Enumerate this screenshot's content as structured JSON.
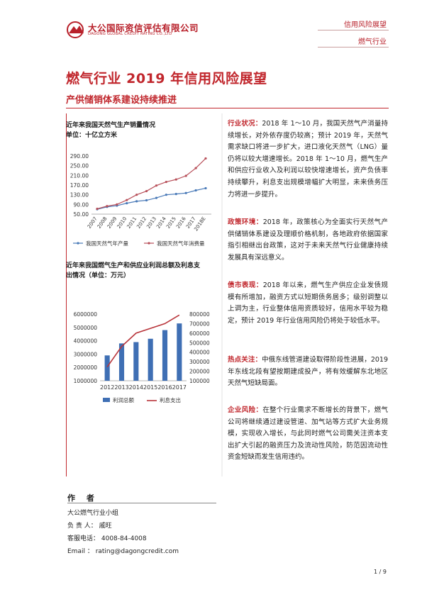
{
  "header": {
    "logo_cn": "大公国际资信评估有限公司",
    "logo_en": "DAGONG GLOBAL CREDIT RATING CO.,LTD",
    "report_type": "信用风险展望",
    "industry": "燃气行业"
  },
  "title": "燃气行业 2019 年信用风险展望",
  "subtitle": "产供储销体系建设持续推进",
  "chart1": {
    "caption_line1": "近年来我国天然气生产销量情况",
    "caption_line2": "单位：十亿立方米"
  },
  "chart2": {
    "caption_line1": "近年来我国燃气生产和供应业利润总额及利息支",
    "caption_line2": "出情况（单位：万元）"
  },
  "chart_data": [
    {
      "type": "line",
      "title": "近年来我国天然气生产销量情况",
      "ylabel": "单位：十亿立方米",
      "categories": [
        "2007",
        "2008",
        "2009",
        "2010",
        "2011",
        "2012",
        "2013",
        "2014",
        "2015",
        "2016",
        "2017",
        "2018E"
      ],
      "series": [
        {
          "name": "我国天然气年产量",
          "values": [
            70,
            80,
            85,
            95,
            103,
            107,
            117,
            130,
            133,
            137,
            148,
            157
          ],
          "color": "#4a7ab8"
        },
        {
          "name": "我国天然气年消费量",
          "values": [
            72,
            83,
            90,
            108,
            130,
            145,
            168,
            183,
            193,
            208,
            240,
            280
          ],
          "color": "#b8505a"
        }
      ],
      "yticks": [
        "50.00",
        "70.00",
        "90.00",
        "110.00",
        "130.00",
        "150.00",
        "170.00",
        "190.00",
        "210.00",
        "230.00",
        "250.00",
        "270.00",
        "290.00"
      ],
      "ylim": [
        50,
        290
      ],
      "legend": "bottom"
    },
    {
      "type": "bar",
      "title": "近年来我国燃气生产和供应业利润总额及利息支出情况",
      "categories": [
        "2012",
        "2013",
        "2014",
        "2015",
        "2016",
        "2017"
      ],
      "series": [
        {
          "name": "利润总额",
          "values": [
            2900000,
            3800000,
            3900000,
            4150000,
            4800000,
            5300000
          ],
          "color": "#3f6fb4",
          "axis": "left",
          "mark": "bar"
        },
        {
          "name": "利息支出",
          "values": [
            245000,
            460000,
            600000,
            650000,
            700000,
            790000
          ],
          "color": "#b8343a",
          "axis": "right",
          "mark": "line"
        }
      ],
      "left_ticks": [
        "1000000",
        "2000000",
        "3000000",
        "4000000",
        "5000000",
        "6000000"
      ],
      "right_ticks": [
        "100000",
        "200000",
        "300000",
        "400000",
        "500000",
        "600000",
        "700000",
        "800000"
      ],
      "left_range": [
        1000000,
        6000000
      ],
      "right_range": [
        100000,
        800000
      ],
      "legend": "bottom"
    }
  ],
  "author": {
    "heading": "作  者",
    "team": "大公燃气行业小组",
    "lead": "负 责 人：  戚旺",
    "phone": "客服电话：  4008-84-4008",
    "email": "Email    ：  rating@dagongcredit.com"
  },
  "sections": [
    {
      "key": "行业状况：",
      "text": "2018 年 1～10 月，我国天然气产消量持续增长，对外依存度仍较高；预计 2019 年，天然气需求缺口将进一步扩大，进口液化天然气（LNG）量仍将以较大增速增长。2018 年 1～10 月，燃气生产和供应行业收入及利润以较快增速增长，资产负债率持续攀升，利息支出规模增幅扩大明显，未来债务压力将进一步提升。"
    },
    {
      "key": "政策环境：",
      "text": "2018 年，政策核心为全面实行天然气产供储销体系建设及理顺价格机制，各地政府依据国家指引相继出台政策，这对于未来天然气行业健康持续发展具有深远意义。"
    },
    {
      "key": "债市表现：",
      "text": "2018 年以来，燃气生产供应企业发债规模有所增加，融资方式以短期债务居多；级别调整以上调为主，行业整体信用资质较好，信用水平较为稳定，预计 2019 年行业信用风险仍将处于较低水平。"
    },
    {
      "key": "热点关注：",
      "text": "中俄东线管道建设取得阶段性进展，2019 年东线北段有望按期建成投产，将有效缓解东北地区天然气短缺局面。"
    },
    {
      "key": "企业风险：",
      "text": "在整个行业需求不断增长的背景下，燃气公司将继续通过建设管道、加气站等方式扩大业务规模，实现收入增长，与此同时燃气公司需关注资本支出扩大引起的融资压力及流动性风险，防范因流动性资金短缺而发生信用违约。"
    }
  ],
  "page_number": "1 / 9"
}
